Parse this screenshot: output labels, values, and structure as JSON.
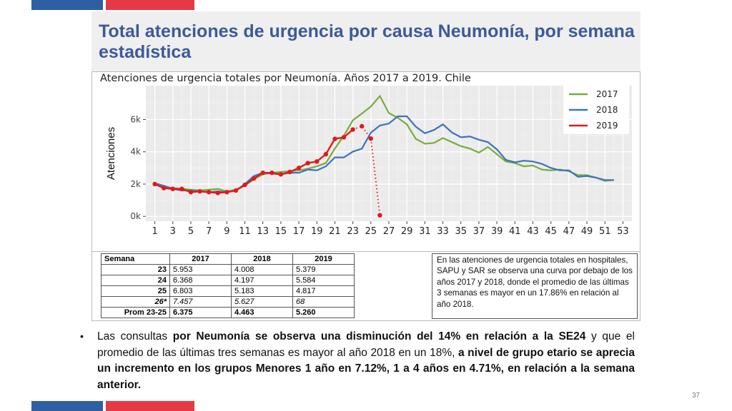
{
  "slide": {
    "title": "Total atenciones de urgencia por causa Neumonía, por semana estadística",
    "page_number": "37",
    "stripe_colors": [
      "#2e5fa3",
      "#e63946"
    ]
  },
  "chart_data": {
    "type": "line",
    "title": "Atenciones de urgencia totales por Neumonía. Años 2017 a 2019. Chile",
    "ylabel": "Atenciones",
    "xlabel": "",
    "xlim": [
      0,
      54
    ],
    "ylim": [
      -300,
      8100
    ],
    "x_ticks": [
      1,
      3,
      5,
      7,
      9,
      11,
      13,
      15,
      17,
      19,
      21,
      23,
      25,
      27,
      29,
      31,
      33,
      35,
      37,
      39,
      41,
      43,
      45,
      47,
      49,
      51,
      53
    ],
    "y_ticks": [
      {
        "value": 0,
        "label": "0k"
      },
      {
        "value": 2000,
        "label": "2k"
      },
      {
        "value": 4000,
        "label": "4k"
      },
      {
        "value": 6000,
        "label": "6k"
      }
    ],
    "grid": true,
    "legend_position": "top-right",
    "series": [
      {
        "name": "2017",
        "color": "#77ac3b",
        "x": [
          1,
          2,
          3,
          4,
          5,
          6,
          7,
          8,
          9,
          10,
          11,
          12,
          13,
          14,
          15,
          16,
          17,
          18,
          19,
          20,
          21,
          22,
          23,
          24,
          25,
          26,
          27,
          28,
          29,
          30,
          31,
          32,
          33,
          34,
          35,
          36,
          37,
          38,
          39,
          40,
          41,
          42,
          43,
          44,
          45,
          46,
          47,
          48,
          49,
          50,
          51,
          52
        ],
        "values": [
          1950,
          1850,
          1750,
          1700,
          1650,
          1600,
          1650,
          1700,
          1550,
          1650,
          1900,
          2300,
          2600,
          2700,
          2750,
          2800,
          2850,
          2950,
          3100,
          3300,
          4200,
          5000,
          5953,
          6368,
          6803,
          7457,
          6400,
          6100,
          5700,
          4800,
          4500,
          4550,
          4850,
          4600,
          4350,
          4200,
          3950,
          4300,
          3850,
          3400,
          3300,
          3100,
          3150,
          2900,
          2850,
          2900,
          2800,
          2550,
          2550,
          2400,
          2200,
          2250
        ]
      },
      {
        "name": "2018",
        "color": "#3f72bd",
        "x": [
          1,
          2,
          3,
          4,
          5,
          6,
          7,
          8,
          9,
          10,
          11,
          12,
          13,
          14,
          15,
          16,
          17,
          18,
          19,
          20,
          21,
          22,
          23,
          24,
          25,
          26,
          27,
          28,
          29,
          30,
          31,
          32,
          33,
          34,
          35,
          36,
          37,
          38,
          39,
          40,
          41,
          42,
          43,
          44,
          45,
          46,
          47,
          48,
          49,
          50,
          51,
          52
        ],
        "values": [
          2050,
          1900,
          1700,
          1600,
          1600,
          1550,
          1500,
          1550,
          1500,
          1600,
          2000,
          2500,
          2700,
          2650,
          2600,
          2700,
          2700,
          2900,
          2850,
          3100,
          3650,
          3650,
          4008,
          4197,
          5183,
          5627,
          5750,
          6200,
          6200,
          5550,
          5150,
          5350,
          5700,
          5200,
          4900,
          4950,
          4750,
          4600,
          4150,
          3500,
          3350,
          3450,
          3400,
          3250,
          3000,
          2850,
          2850,
          2450,
          2500,
          2400,
          2250,
          2250
        ]
      },
      {
        "name": "2019",
        "color": "#e3191b",
        "x": [
          1,
          2,
          3,
          4,
          5,
          6,
          7,
          8,
          9,
          10,
          11,
          12,
          13,
          14,
          15,
          16,
          17,
          18,
          19,
          20,
          21,
          22,
          23,
          24,
          25,
          26
        ],
        "values": [
          2000,
          1750,
          1700,
          1700,
          1500,
          1550,
          1500,
          1450,
          1500,
          1600,
          1950,
          2350,
          2700,
          2700,
          2600,
          2750,
          3000,
          3300,
          3400,
          3850,
          4800,
          4900,
          5379,
          5584,
          4817,
          68
        ]
      }
    ]
  },
  "table": {
    "headers": [
      "Semana",
      "2017",
      "2018",
      "2019"
    ],
    "rows": [
      {
        "label": "23",
        "v2017": "5.953",
        "v2018": "4.008",
        "v2019": "5.379"
      },
      {
        "label": "24",
        "v2017": "6.368",
        "v2018": "4.197",
        "v2019": "5.584"
      },
      {
        "label": "25",
        "v2017": "6.803",
        "v2018": "5.183",
        "v2019": "4.817"
      },
      {
        "label": "26*",
        "v2017": "7.457",
        "v2018": "5.627",
        "v2019": "68"
      },
      {
        "label": "Prom 23-25",
        "v2017": "6.375",
        "v2018": "4.463",
        "v2019": "5.260"
      }
    ]
  },
  "note": "En las atenciones de urgencia totales en hospitales, SAPU y SAR se observa una curva por debajo de los años 2017 y 2018, donde el promedio de las últimas 3 semanas es mayor en un 17.86% en relación al año 2018.",
  "bullet": {
    "t1": "Las consultas ",
    "t2": "por Neumonía se observa una disminución del 14% en relación a la SE24",
    "t3": " y  que el promedio de las últimas tres semanas es mayor al año 2018 en un 18%, ",
    "t4": "a nivel de grupo etario se aprecia un incremento en los grupos Menores 1 año en 7.12%, 1 a 4 años en 4.71%, en relación a la semana anterior."
  }
}
